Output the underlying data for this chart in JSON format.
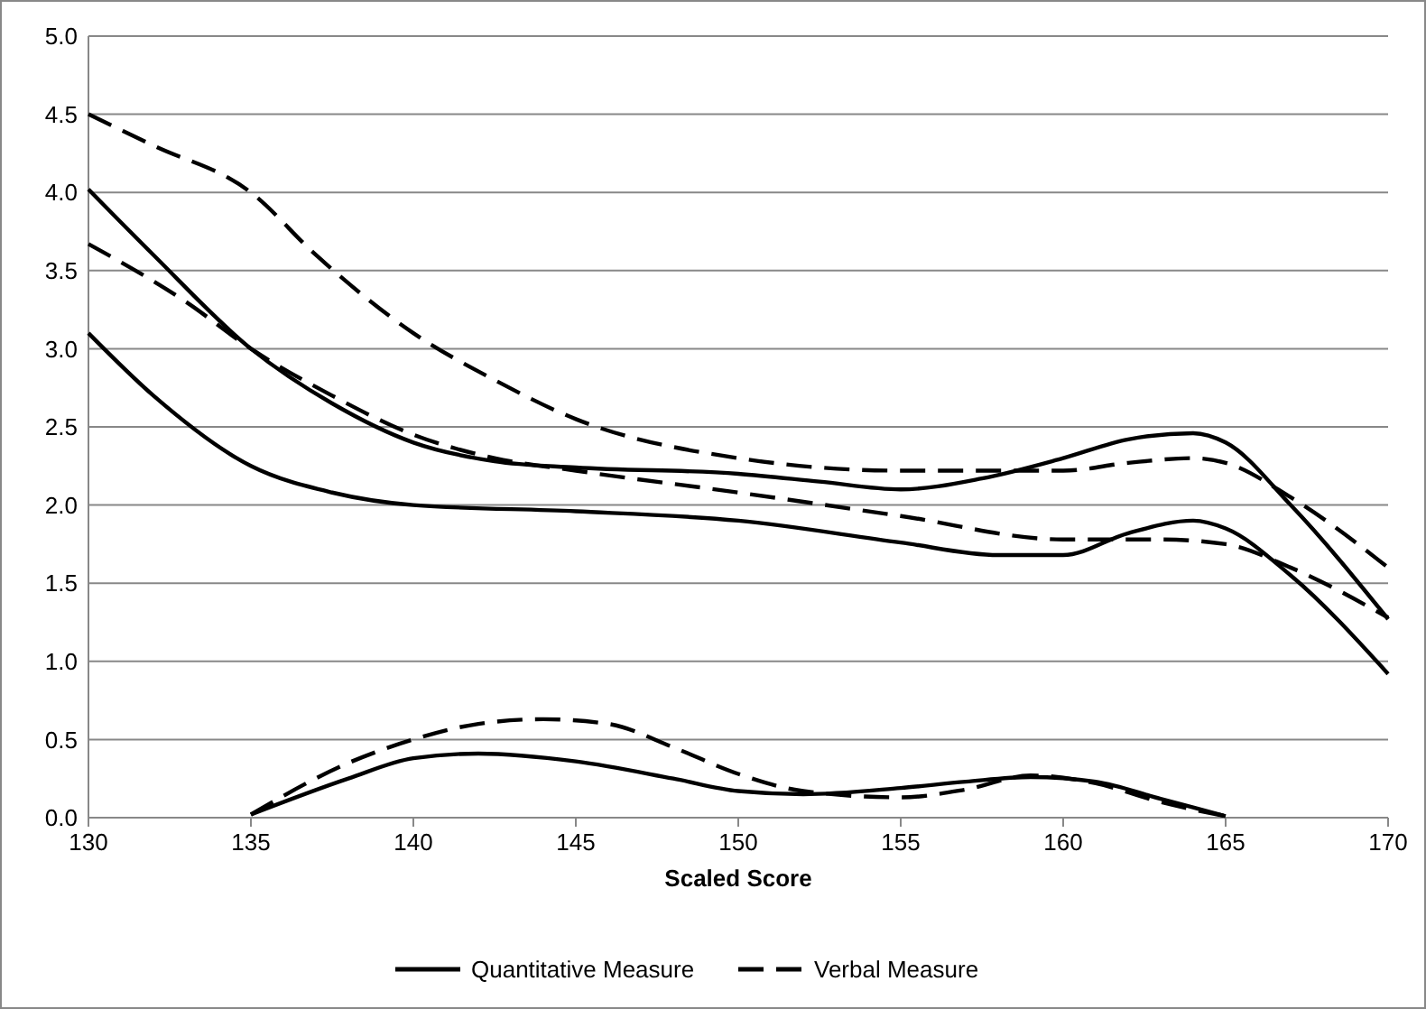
{
  "chart_data": {
    "type": "line",
    "xlabel": "Scaled Score",
    "xlim": [
      130,
      170
    ],
    "xticks": [
      130,
      135,
      140,
      145,
      150,
      155,
      160,
      165,
      170
    ],
    "ylim": [
      0,
      5
    ],
    "yticks": [
      {
        "value": 0,
        "label": "0.0"
      },
      {
        "value": 0.5,
        "label": "0.5"
      },
      {
        "value": 1,
        "label": "1.0"
      },
      {
        "value": 1.5,
        "label": "1.5"
      },
      {
        "value": 2,
        "label": "2.0"
      },
      {
        "value": 2.5,
        "label": "2.5"
      },
      {
        "value": 3,
        "label": "3.0"
      },
      {
        "value": 3.5,
        "label": "3.5"
      },
      {
        "value": 4,
        "label": "4.0"
      },
      {
        "value": 4.5,
        "label": "4.5"
      },
      {
        "value": 5,
        "label": "5.0"
      }
    ],
    "grid": "y",
    "legend": "bottom",
    "series": [
      {
        "name": "Quantitative Measure",
        "color": "#000000",
        "line_style": "solid",
        "x": [
          130,
          132,
          135,
          137.5,
          140,
          142.5,
          145,
          150,
          152.5,
          155,
          157.5,
          160,
          162,
          164,
          165,
          167,
          170
        ],
        "values": [
          4.02,
          3.6,
          3.0,
          2.65,
          2.4,
          2.28,
          2.24,
          2.2,
          2.15,
          2.1,
          2.17,
          2.3,
          2.42,
          2.46,
          2.4,
          2.0,
          1.27
        ]
      },
      {
        "color": "#000000",
        "line_style": "solid",
        "x": [
          130,
          132,
          135,
          137.5,
          140,
          145,
          150,
          155,
          158,
          160,
          162,
          164,
          165,
          167,
          170
        ],
        "values": [
          3.1,
          2.7,
          2.25,
          2.08,
          2.0,
          1.96,
          1.9,
          1.76,
          1.68,
          1.68,
          1.82,
          1.9,
          1.85,
          1.55,
          0.92
        ]
      },
      {
        "color": "#000000",
        "line_style": "solid",
        "x": [
          135,
          138,
          140,
          142,
          145,
          148,
          150,
          152,
          155,
          157,
          159,
          161,
          163,
          165
        ],
        "values": [
          0.02,
          0.25,
          0.38,
          0.41,
          0.36,
          0.25,
          0.17,
          0.15,
          0.19,
          0.23,
          0.26,
          0.23,
          0.12,
          0.01
        ]
      },
      {
        "name": "Verbal Measure",
        "color": "#000000",
        "line_style": "dashed",
        "x": [
          130,
          132,
          135,
          137,
          140,
          142.5,
          145,
          150,
          155,
          160,
          162,
          164,
          165,
          167,
          170
        ],
        "values": [
          4.5,
          4.3,
          4.0,
          3.6,
          3.1,
          2.8,
          2.55,
          2.3,
          2.22,
          2.22,
          2.27,
          2.3,
          2.27,
          2.05,
          1.6
        ]
      },
      {
        "color": "#000000",
        "line_style": "dashed",
        "x": [
          130,
          133,
          135,
          137.5,
          140,
          142.5,
          145,
          150,
          155,
          160,
          163,
          165,
          167,
          170
        ],
        "values": [
          3.67,
          3.3,
          3.0,
          2.7,
          2.45,
          2.3,
          2.22,
          2.08,
          1.93,
          1.78,
          1.78,
          1.75,
          1.6,
          1.28
        ]
      },
      {
        "color": "#000000",
        "line_style": "dashed",
        "x": [
          135,
          138,
          140,
          142,
          144,
          146,
          148,
          150,
          152,
          155,
          157,
          159,
          161,
          163,
          165
        ],
        "values": [
          0.02,
          0.35,
          0.5,
          0.6,
          0.63,
          0.6,
          0.45,
          0.28,
          0.17,
          0.13,
          0.18,
          0.27,
          0.22,
          0.1,
          0.01
        ]
      }
    ]
  }
}
